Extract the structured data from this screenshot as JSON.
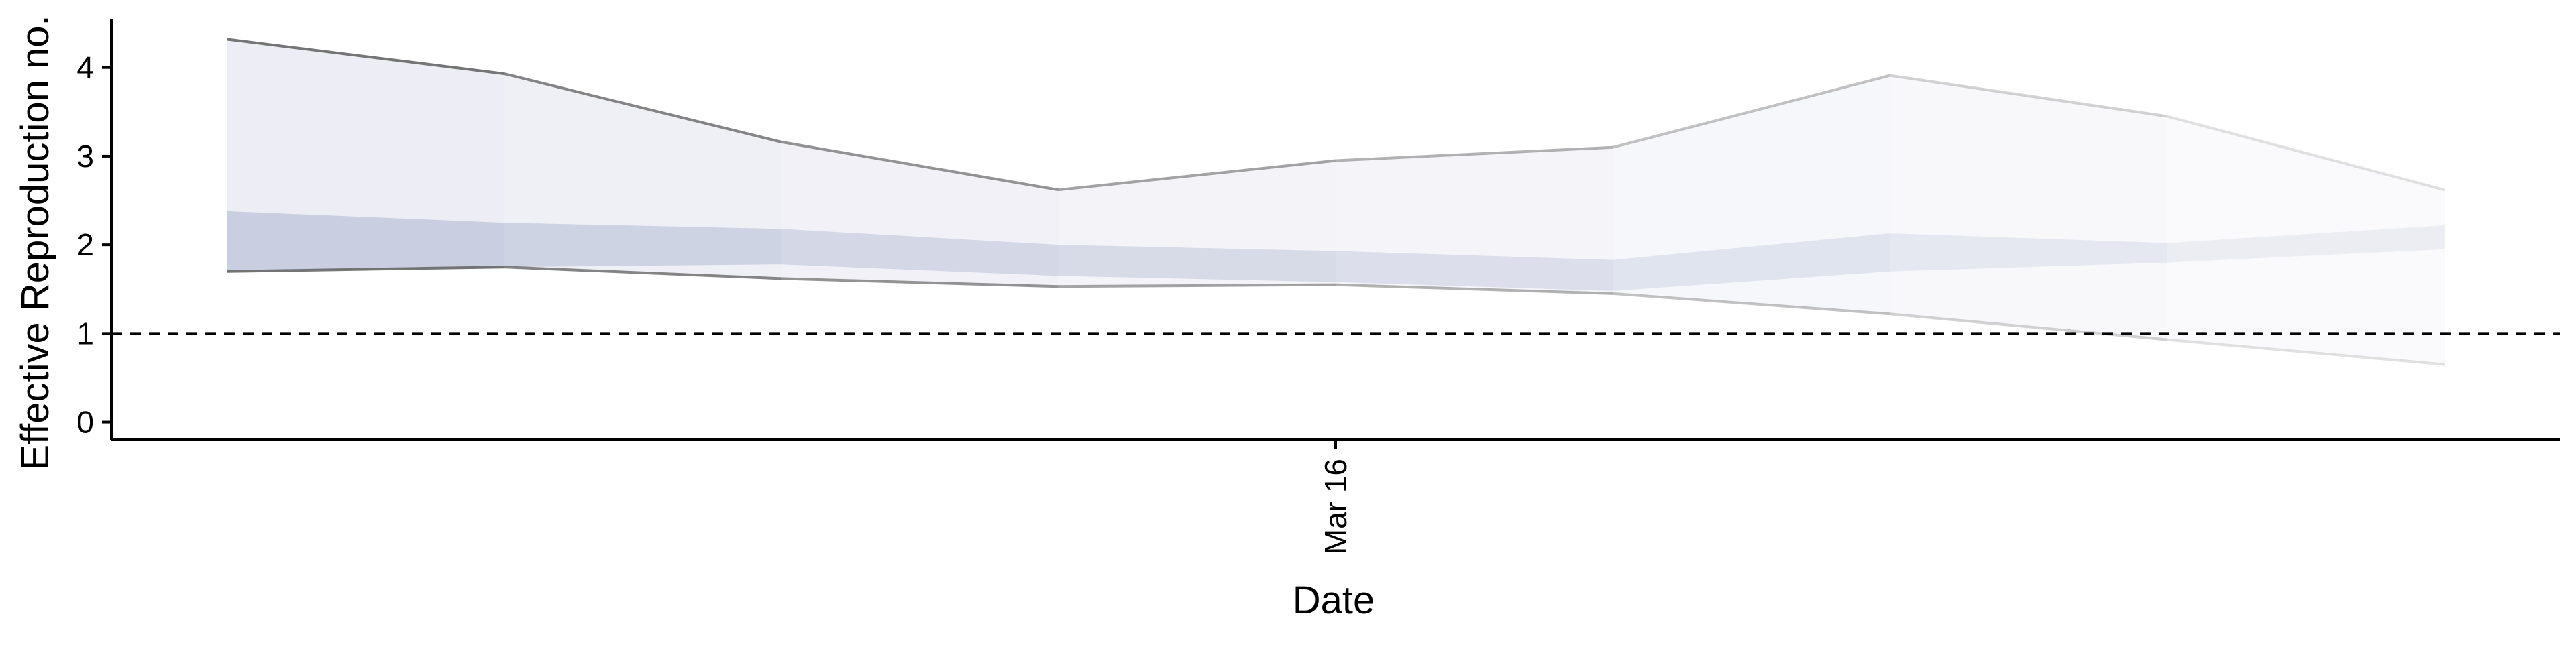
{
  "chart_data": {
    "type": "area",
    "title": "",
    "xlabel": "Date",
    "ylabel": "Effective Reproduction no.",
    "x": [
      "2020-03-12",
      "2020-03-13",
      "2020-03-14",
      "2020-03-15",
      "2020-03-16",
      "2020-03-17",
      "2020-03-18",
      "2020-03-19",
      "2020-03-20"
    ],
    "x_ticks": [
      {
        "value": "2020-03-16",
        "label": "Mar 16"
      }
    ],
    "y_ticks": [
      {
        "value": 0,
        "label": "0"
      },
      {
        "value": 1,
        "label": "1"
      },
      {
        "value": 2,
        "label": "2"
      },
      {
        "value": 3,
        "label": "3"
      },
      {
        "value": 4,
        "label": "4"
      }
    ],
    "ylim": [
      -0.2,
      4.55
    ],
    "xlim": [
      "2020-03-11 14:00",
      "2020-03-20 10:00"
    ],
    "series": [
      {
        "type": "band",
        "lower": [
          1.7,
          1.75,
          1.62,
          1.53,
          1.55,
          1.45,
          1.22,
          0.93,
          0.65
        ],
        "upper": [
          4.32,
          3.93,
          3.16,
          2.62,
          2.95,
          3.1,
          3.91,
          3.45,
          2.62
        ]
      },
      {
        "type": "band",
        "lower": [
          1.7,
          1.75,
          1.78,
          1.65,
          1.58,
          1.48,
          1.7,
          1.8,
          1.95
        ],
        "upper": [
          2.38,
          2.25,
          2.18,
          2.0,
          1.93,
          1.83,
          2.13,
          2.02,
          2.22
        ]
      }
    ],
    "reference_line": {
      "y": 1,
      "style": "dashed"
    },
    "colors": {
      "outer_band": "#c9cbe0",
      "inner_band": "#a9b3cf",
      "bound_line": "#6e6e6e",
      "reference": "#000000"
    },
    "grid": false,
    "legend": "none"
  }
}
